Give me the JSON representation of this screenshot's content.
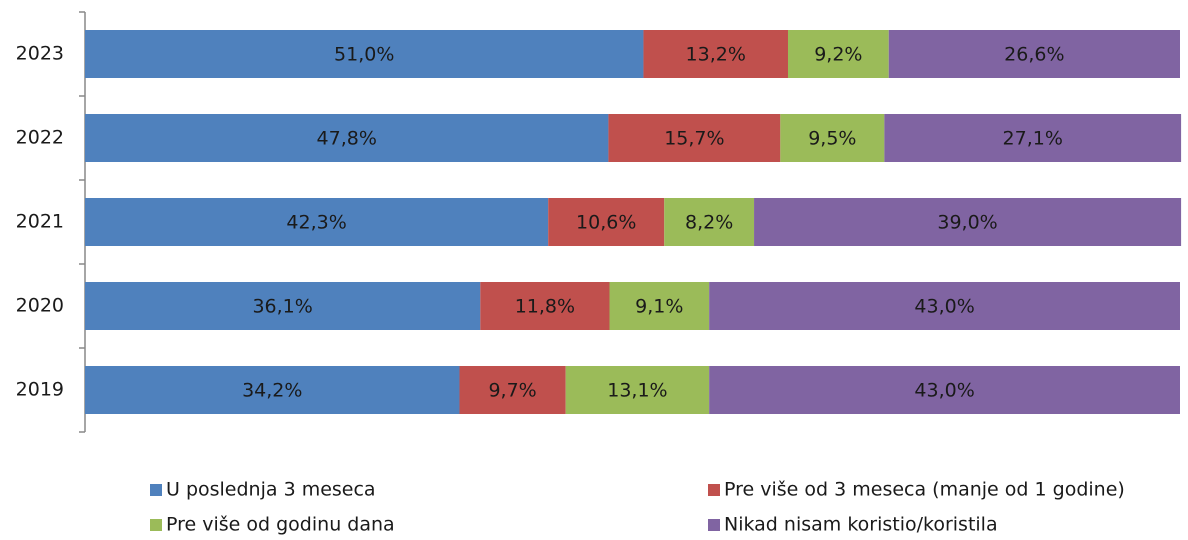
{
  "chart_data": {
    "type": "stacked-bar-horizontal",
    "categories": [
      "2023",
      "2022",
      "2021",
      "2020",
      "2019"
    ],
    "xlim": [
      0,
      100
    ],
    "legend": "bottom",
    "series": [
      {
        "name": "U poslednja 3 meseca",
        "color": "#4f81bd",
        "values": [
          51.0,
          47.8,
          42.3,
          36.1,
          34.2
        ],
        "value_labels": [
          "51,0%",
          "47,8%",
          "42,3%",
          "36,1%",
          "34,2%"
        ]
      },
      {
        "name": "Pre više od 3 meseca (manje od 1 godine)",
        "color": "#c0504d",
        "values": [
          13.2,
          15.7,
          10.6,
          11.8,
          9.7
        ],
        "value_labels": [
          "13,2%",
          "15,7%",
          "10,6%",
          "11,8%",
          "9,7%"
        ]
      },
      {
        "name": "Pre više od godinu dana",
        "color": "#9bbb59",
        "values": [
          9.2,
          9.5,
          8.2,
          9.1,
          13.1
        ],
        "value_labels": [
          "9,2%",
          "9,5%",
          "8,2%",
          "9,1%",
          "13,1%"
        ]
      },
      {
        "name": "Nikad nisam koristio/koristila",
        "color": "#8064a2",
        "values": [
          26.6,
          27.1,
          39.0,
          43.0,
          43.0
        ],
        "value_labels": [
          "26,6%",
          "27,1%",
          "39,0%",
          "43,0%",
          "43,0%"
        ]
      }
    ]
  }
}
